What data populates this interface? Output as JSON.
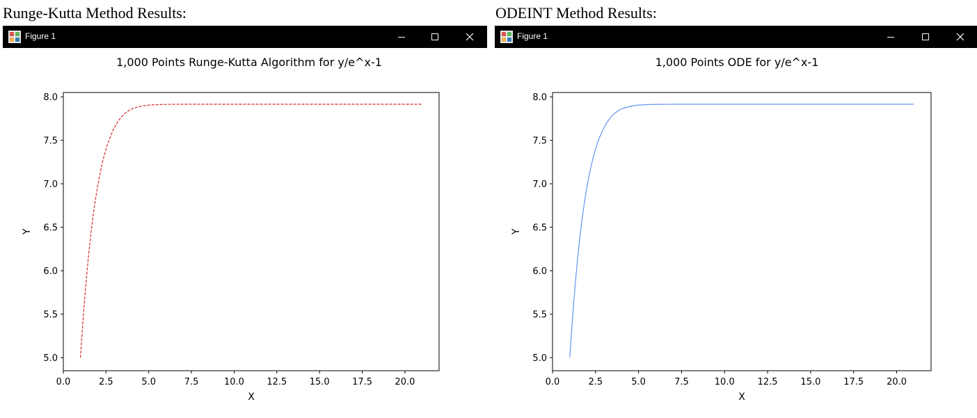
{
  "left": {
    "section_label": "Runge-Kutta Method Results:",
    "window_title": "Figure 1"
  },
  "right": {
    "section_label": "ODEINT Method Results:",
    "window_title": "Figure 1"
  },
  "window_controls": {
    "minimize_icon": "minimize-icon",
    "maximize_icon": "maximize-icon",
    "close_icon": "close-icon"
  },
  "chart_data": [
    {
      "type": "line",
      "title": "1,000 Points Runge-Kutta Algorithm for y/e^x-1",
      "xlabel": "X",
      "ylabel": "Y",
      "xlim": [
        0,
        22
      ],
      "ylim": [
        4.85,
        8.05
      ],
      "xticks": [
        0.0,
        2.5,
        5.0,
        7.5,
        10.0,
        12.5,
        15.0,
        17.5,
        20.0
      ],
      "xtick_labels": [
        "0.0",
        "2.5",
        "5.0",
        "7.5",
        "10.0",
        "12.5",
        "15.0",
        "17.5",
        "20.0"
      ],
      "yticks": [
        5.0,
        5.5,
        6.0,
        6.5,
        7.0,
        7.5,
        8.0
      ],
      "ytick_labels": [
        "5.0",
        "5.5",
        "6.0",
        "6.5",
        "7.0",
        "7.5",
        "8.0"
      ],
      "grid": false,
      "series": [
        {
          "line_style": "dashed",
          "color": "#d62728",
          "x": [
            1.0,
            1.25,
            1.5,
            1.75,
            2.0,
            2.25,
            2.5,
            2.75,
            3.0,
            3.25,
            3.5,
            3.75,
            4.0,
            4.5,
            5.0,
            5.5,
            6.0,
            6.5,
            7.0,
            8.0,
            9.0,
            10.0,
            12.0,
            14.0,
            16.0,
            18.0,
            21.0
          ],
          "y": [
            5.0,
            5.68,
            6.22,
            6.64,
            6.96,
            7.21,
            7.4,
            7.54,
            7.65,
            7.73,
            7.79,
            7.83,
            7.86,
            7.89,
            7.905,
            7.91,
            7.913,
            7.914,
            7.915,
            7.915,
            7.915,
            7.915,
            7.915,
            7.915,
            7.915,
            7.915,
            7.915
          ]
        }
      ]
    },
    {
      "type": "line",
      "title": "1,000 Points ODE for y/e^x-1",
      "xlabel": "X",
      "ylabel": "Y",
      "xlim": [
        0,
        22
      ],
      "ylim": [
        4.85,
        8.05
      ],
      "xticks": [
        0.0,
        2.5,
        5.0,
        7.5,
        10.0,
        12.5,
        15.0,
        17.5,
        20.0
      ],
      "xtick_labels": [
        "0.0",
        "2.5",
        "5.0",
        "7.5",
        "10.0",
        "12.5",
        "15.0",
        "17.5",
        "20.0"
      ],
      "yticks": [
        5.0,
        5.5,
        6.0,
        6.5,
        7.0,
        7.5,
        8.0
      ],
      "ytick_labels": [
        "5.0",
        "5.5",
        "6.0",
        "6.5",
        "7.0",
        "7.5",
        "8.0"
      ],
      "grid": false,
      "series": [
        {
          "line_style": "solid",
          "color": "#6495ed",
          "x": [
            1.0,
            1.25,
            1.5,
            1.75,
            2.0,
            2.25,
            2.5,
            2.75,
            3.0,
            3.25,
            3.5,
            3.75,
            4.0,
            4.5,
            5.0,
            5.5,
            6.0,
            6.5,
            7.0,
            8.0,
            9.0,
            10.0,
            12.0,
            14.0,
            16.0,
            18.0,
            21.0
          ],
          "y": [
            5.0,
            5.68,
            6.22,
            6.64,
            6.96,
            7.21,
            7.4,
            7.54,
            7.65,
            7.73,
            7.79,
            7.83,
            7.86,
            7.89,
            7.905,
            7.91,
            7.913,
            7.914,
            7.915,
            7.915,
            7.915,
            7.915,
            7.915,
            7.915,
            7.915,
            7.915,
            7.915
          ]
        }
      ]
    }
  ]
}
